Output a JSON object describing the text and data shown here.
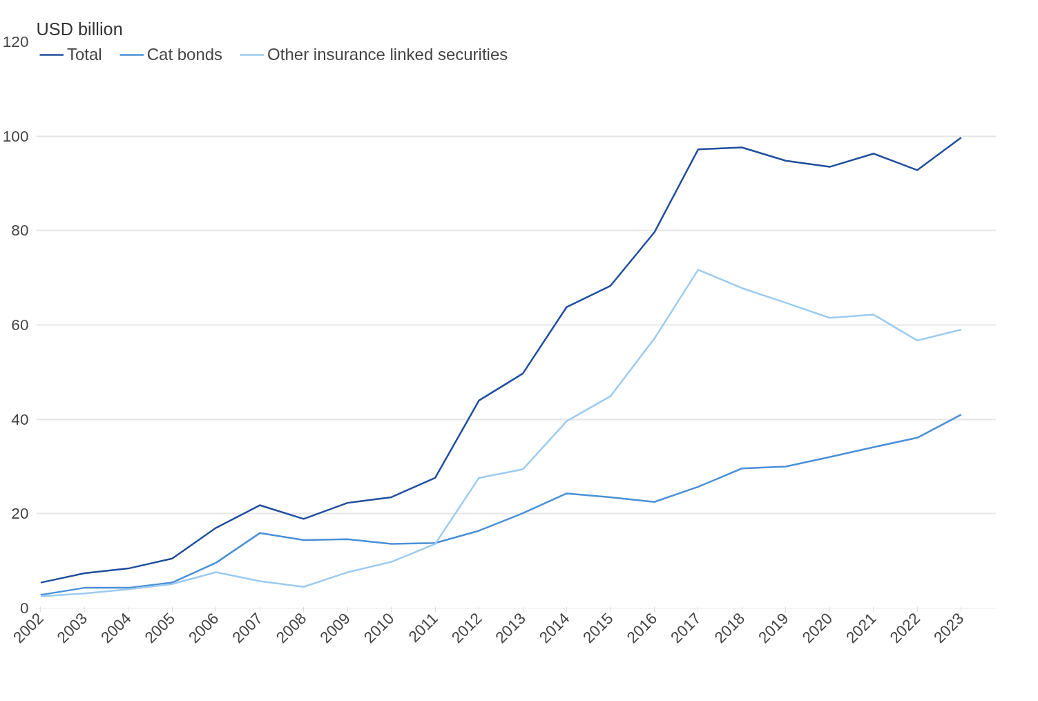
{
  "chart_data": {
    "type": "line",
    "ylabel": "USD billion",
    "categories": [
      "2002",
      "2003",
      "2004",
      "2005",
      "2006",
      "2007",
      "2008",
      "2009",
      "2010",
      "2011",
      "2012",
      "2013",
      "2014",
      "2015",
      "2016",
      "2017",
      "2018",
      "2019",
      "2020",
      "2021",
      "2022",
      "2023"
    ],
    "ylim": [
      0,
      120
    ],
    "yticks": [
      0,
      20,
      40,
      60,
      80,
      100,
      120
    ],
    "grid": "y",
    "legend": "top left",
    "marker": "none",
    "line_style": "solid",
    "series": [
      {
        "name": "Total",
        "color": "#1f4e9e",
        "values": [
          5.4,
          7.4,
          8.4,
          10.5,
          17,
          21.8,
          18.9,
          22.3,
          23.5,
          27.6,
          44,
          49.7,
          63.8,
          68.3,
          79.6,
          97.2,
          97.6,
          94.8,
          93.5,
          96.3,
          92.8,
          99.7
        ]
      },
      {
        "name": "Cat bonds",
        "color": "#4a8fd8",
        "values": [
          2.8,
          4.3,
          4.3,
          5.4,
          9.6,
          15.9,
          14.4,
          14.6,
          13.6,
          13.8,
          16.4,
          20.1,
          24.3,
          23.5,
          22.5,
          25.7,
          29.6,
          30,
          32,
          34.1,
          36.1,
          41
        ]
      },
      {
        "name": "Other insurance linked securities",
        "color": "#9ccbf0",
        "values": [
          2.5,
          3.1,
          4,
          5.1,
          7.6,
          5.7,
          4.5,
          7.6,
          9.8,
          13.6,
          27.6,
          29.4,
          39.6,
          44.9,
          57.1,
          71.7,
          67.8,
          64.7,
          61.5,
          62.2,
          56.7,
          59
        ]
      }
    ]
  }
}
